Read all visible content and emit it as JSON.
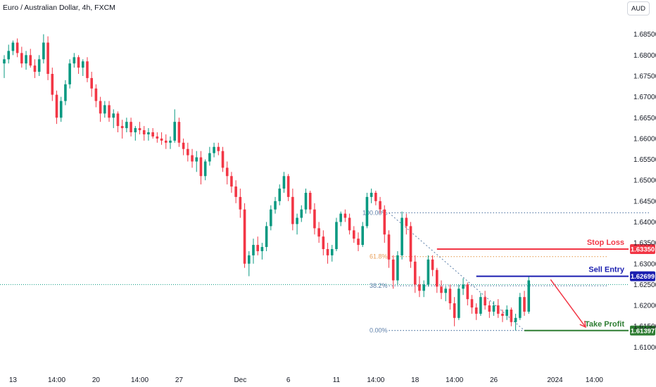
{
  "header": {
    "title": "Euro / Australian Dollar, 4h, FXCM",
    "currency_button": "AUD"
  },
  "colors": {
    "bull": "#089981",
    "bear": "#f23645",
    "grid": "#ffffff",
    "axis_text": "#131722",
    "stop": "#f23645",
    "entry": "#1b1fb0",
    "target": "#2e7d32",
    "fib": "#5b7ea8",
    "fib_mid": "#e8a05a"
  },
  "chart_data": {
    "type": "candlestick",
    "title": "Euro / Australian Dollar, 4h, FXCM",
    "ylim": [
      1.6055,
      1.6895
    ],
    "y_ticks": [
      "1.68500",
      "1.68000",
      "1.67500",
      "1.67000",
      "1.66500",
      "1.66000",
      "1.65500",
      "1.65000",
      "1.64500",
      "1.64000",
      "1.63500",
      "1.63000",
      "1.62500",
      "1.62000",
      "1.61500",
      "1.61000"
    ],
    "x_ticks": [
      {
        "label": "13",
        "i": 2
      },
      {
        "label": "14:00",
        "i": 12
      },
      {
        "label": "20",
        "i": 21
      },
      {
        "label": "14:00",
        "i": 31
      },
      {
        "label": "27",
        "i": 40
      },
      {
        "label": "Dec",
        "i": 54
      },
      {
        "label": "6",
        "i": 65
      },
      {
        "label": "11",
        "i": 76
      },
      {
        "label": "14:00",
        "i": 85
      },
      {
        "label": "18",
        "i": 94
      },
      {
        "label": "14:00",
        "i": 103
      },
      {
        "label": "26",
        "i": 112
      },
      {
        "label": "2024",
        "i": 126
      },
      {
        "label": "14:00",
        "i": 135
      }
    ],
    "grid": false,
    "legend": "none",
    "candles": [
      [
        1.678,
        1.68,
        1.6745,
        1.679
      ],
      [
        1.679,
        1.6825,
        1.678,
        1.681
      ],
      [
        1.681,
        1.6835,
        1.68,
        1.683
      ],
      [
        1.683,
        1.684,
        1.6795,
        1.6805
      ],
      [
        1.6805,
        1.682,
        1.677,
        1.678
      ],
      [
        1.678,
        1.681,
        1.6765,
        1.68
      ],
      [
        1.68,
        1.6815,
        1.677,
        1.6775
      ],
      [
        1.6775,
        1.679,
        1.6745,
        1.676
      ],
      [
        1.676,
        1.68,
        1.675,
        1.679
      ],
      [
        1.679,
        1.685,
        1.678,
        1.683
      ],
      [
        1.683,
        1.6845,
        1.674,
        1.6755
      ],
      [
        1.6755,
        1.677,
        1.669,
        1.6705
      ],
      [
        1.6705,
        1.6715,
        1.6635,
        1.665
      ],
      [
        1.665,
        1.67,
        1.664,
        1.669
      ],
      [
        1.669,
        1.674,
        1.668,
        1.673
      ],
      [
        1.673,
        1.679,
        1.672,
        1.678
      ],
      [
        1.678,
        1.6805,
        1.677,
        1.6795
      ],
      [
        1.6795,
        1.68,
        1.6755,
        1.677
      ],
      [
        1.677,
        1.679,
        1.675,
        1.6785
      ],
      [
        1.6785,
        1.6795,
        1.6735,
        1.6745
      ],
      [
        1.6745,
        1.676,
        1.67,
        1.672
      ],
      [
        1.672,
        1.673,
        1.6675,
        1.669
      ],
      [
        1.669,
        1.67,
        1.664,
        1.666
      ],
      [
        1.666,
        1.669,
        1.665,
        1.668
      ],
      [
        1.668,
        1.669,
        1.664,
        1.665
      ],
      [
        1.665,
        1.667,
        1.6625,
        1.666
      ],
      [
        1.666,
        1.6665,
        1.6615,
        1.663
      ],
      [
        1.663,
        1.6645,
        1.66,
        1.6625
      ],
      [
        1.6625,
        1.665,
        1.6615,
        1.664
      ],
      [
        1.664,
        1.665,
        1.6605,
        1.6615
      ],
      [
        1.6615,
        1.663,
        1.6595,
        1.6625
      ],
      [
        1.6625,
        1.664,
        1.661,
        1.662
      ],
      [
        1.662,
        1.663,
        1.6595,
        1.661
      ],
      [
        1.661,
        1.6625,
        1.6595,
        1.6615
      ],
      [
        1.6615,
        1.6625,
        1.66,
        1.6605
      ],
      [
        1.6605,
        1.6615,
        1.659,
        1.66
      ],
      [
        1.66,
        1.6615,
        1.6585,
        1.6595
      ],
      [
        1.6595,
        1.661,
        1.6575,
        1.659
      ],
      [
        1.659,
        1.6605,
        1.6575,
        1.6595
      ],
      [
        1.6595,
        1.667,
        1.659,
        1.664
      ],
      [
        1.664,
        1.665,
        1.658,
        1.659
      ],
      [
        1.659,
        1.66,
        1.656,
        1.6575
      ],
      [
        1.6575,
        1.659,
        1.6545,
        1.656
      ],
      [
        1.656,
        1.6575,
        1.653,
        1.6545
      ],
      [
        1.6545,
        1.657,
        1.652,
        1.6555
      ],
      [
        1.6555,
        1.657,
        1.649,
        1.651
      ],
      [
        1.651,
        1.655,
        1.65,
        1.6545
      ],
      [
        1.6545,
        1.658,
        1.6535,
        1.6565
      ],
      [
        1.6565,
        1.659,
        1.6555,
        1.658
      ],
      [
        1.658,
        1.659,
        1.656,
        1.657
      ],
      [
        1.657,
        1.658,
        1.652,
        1.653
      ],
      [
        1.653,
        1.6545,
        1.649,
        1.651
      ],
      [
        1.651,
        1.652,
        1.647,
        1.6485
      ],
      [
        1.6485,
        1.65,
        1.6445,
        1.646
      ],
      [
        1.646,
        1.648,
        1.641,
        1.643
      ],
      [
        1.643,
        1.6445,
        1.629,
        1.63
      ],
      [
        1.63,
        1.633,
        1.627,
        1.632
      ],
      [
        1.632,
        1.636,
        1.63,
        1.6345
      ],
      [
        1.6345,
        1.6365,
        1.632,
        1.633
      ],
      [
        1.633,
        1.635,
        1.631,
        1.634
      ],
      [
        1.634,
        1.64,
        1.633,
        1.639
      ],
      [
        1.639,
        1.644,
        1.638,
        1.643
      ],
      [
        1.643,
        1.646,
        1.642,
        1.645
      ],
      [
        1.645,
        1.649,
        1.644,
        1.648
      ],
      [
        1.648,
        1.652,
        1.647,
        1.651
      ],
      [
        1.651,
        1.6515,
        1.645,
        1.646
      ],
      [
        1.646,
        1.648,
        1.638,
        1.6395
      ],
      [
        1.6395,
        1.642,
        1.637,
        1.641
      ],
      [
        1.641,
        1.644,
        1.64,
        1.643
      ],
      [
        1.643,
        1.648,
        1.642,
        1.647
      ],
      [
        1.647,
        1.6475,
        1.642,
        1.643
      ],
      [
        1.643,
        1.6445,
        1.637,
        1.6385
      ],
      [
        1.6385,
        1.64,
        1.635,
        1.6365
      ],
      [
        1.6365,
        1.638,
        1.632,
        1.6335
      ],
      [
        1.6335,
        1.635,
        1.63,
        1.632
      ],
      [
        1.632,
        1.6345,
        1.6305,
        1.6335
      ],
      [
        1.6335,
        1.641,
        1.633,
        1.64
      ],
      [
        1.64,
        1.6425,
        1.639,
        1.642
      ],
      [
        1.642,
        1.643,
        1.64,
        1.641
      ],
      [
        1.641,
        1.642,
        1.637,
        1.638
      ],
      [
        1.638,
        1.639,
        1.635,
        1.636
      ],
      [
        1.636,
        1.6375,
        1.633,
        1.6345
      ],
      [
        1.6345,
        1.64,
        1.634,
        1.639
      ],
      [
        1.639,
        1.647,
        1.6385,
        1.646
      ],
      [
        1.646,
        1.648,
        1.6445,
        1.647
      ],
      [
        1.647,
        1.6475,
        1.644,
        1.645
      ],
      [
        1.645,
        1.646,
        1.642,
        1.643
      ],
      [
        1.643,
        1.644,
        1.635,
        1.637
      ],
      [
        1.637,
        1.638,
        1.629,
        1.631
      ],
      [
        1.631,
        1.632,
        1.624,
        1.626
      ],
      [
        1.626,
        1.633,
        1.625,
        1.632
      ],
      [
        1.632,
        1.6425,
        1.631,
        1.641
      ],
      [
        1.641,
        1.642,
        1.637,
        1.639
      ],
      [
        1.639,
        1.64,
        1.629,
        1.6305
      ],
      [
        1.6305,
        1.632,
        1.623,
        1.625
      ],
      [
        1.625,
        1.627,
        1.622,
        1.6235
      ],
      [
        1.6235,
        1.626,
        1.622,
        1.625
      ],
      [
        1.625,
        1.632,
        1.6245,
        1.631
      ],
      [
        1.631,
        1.632,
        1.627,
        1.6285
      ],
      [
        1.6285,
        1.629,
        1.623,
        1.6245
      ],
      [
        1.6245,
        1.626,
        1.6215,
        1.623
      ],
      [
        1.623,
        1.6245,
        1.621,
        1.624
      ],
      [
        1.624,
        1.625,
        1.619,
        1.6205
      ],
      [
        1.6205,
        1.622,
        1.615,
        1.617
      ],
      [
        1.617,
        1.625,
        1.6165,
        1.624
      ],
      [
        1.624,
        1.6265,
        1.6225,
        1.625
      ],
      [
        1.625,
        1.6255,
        1.62,
        1.6215
      ],
      [
        1.6215,
        1.6225,
        1.618,
        1.6195
      ],
      [
        1.6195,
        1.6205,
        1.6165,
        1.618
      ],
      [
        1.618,
        1.623,
        1.6175,
        1.622
      ],
      [
        1.622,
        1.6235,
        1.619,
        1.62
      ],
      [
        1.62,
        1.621,
        1.617,
        1.6185
      ],
      [
        1.6185,
        1.621,
        1.6175,
        1.62
      ],
      [
        1.62,
        1.6215,
        1.617,
        1.618
      ],
      [
        1.618,
        1.619,
        1.616,
        1.6175
      ],
      [
        1.6175,
        1.62,
        1.6165,
        1.619
      ],
      [
        1.619,
        1.6195,
        1.615,
        1.616
      ],
      [
        1.616,
        1.618,
        1.614,
        1.617
      ],
      [
        1.617,
        1.623,
        1.6165,
        1.622
      ],
      [
        1.622,
        1.6235,
        1.6175,
        1.6185
      ],
      [
        1.6185,
        1.627,
        1.618,
        1.626
      ]
    ],
    "fib_levels": [
      {
        "label": "100.00%",
        "price": 1.6422,
        "color": "#5b7ea8"
      },
      {
        "label": "61.8%",
        "price": 1.6317,
        "color": "#e8a05a"
      },
      {
        "label": "38.2%",
        "price": 1.6247,
        "color": "#5b7ea8"
      },
      {
        "label": "0.00%",
        "price": 1.614,
        "color": "#5b7ea8"
      }
    ],
    "current_price_line": 1.625,
    "levels": [
      {
        "name": "Stop Loss",
        "price": 1.6335,
        "tag": "1.63350",
        "color": "#f23645"
      },
      {
        "name": "Sell Entry",
        "price": 1.62699,
        "tag": "1.62699",
        "color": "#1b1fb0"
      },
      {
        "name": "Take Profit",
        "price": 1.61397,
        "tag": "1.61397",
        "color": "#2e7d32"
      }
    ]
  }
}
